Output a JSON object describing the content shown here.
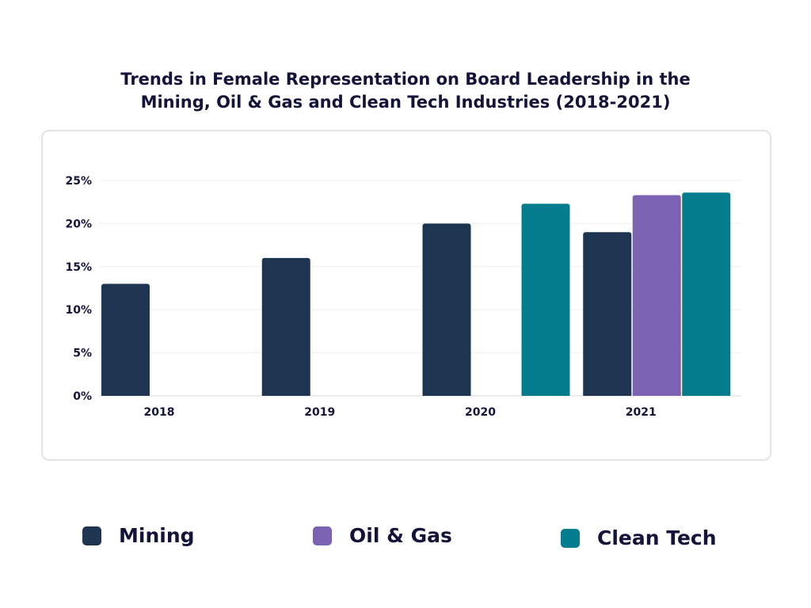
{
  "title_line1": "Trends in Female Representation on Board Leadership in the",
  "title_line2": "Mining, Oil & Gas and Clean Tech Industries (2018-2021)",
  "chart_data": {
    "type": "bar",
    "title": "Trends in Female Representation on Board Leadership in the Mining, Oil & Gas and Clean Tech Industries (2018-2021)",
    "categories": [
      "2018",
      "2019",
      "2020",
      "2021"
    ],
    "series": [
      {
        "name": "Mining",
        "color": "#1e3552",
        "values": [
          13,
          16,
          20,
          19
        ]
      },
      {
        "name": "Oil & Gas",
        "color": "#7b62b3",
        "values": [
          null,
          null,
          null,
          23.3
        ]
      },
      {
        "name": "Clean Tech",
        "color": "#037d8d",
        "values": [
          null,
          null,
          22.3,
          23.6
        ]
      }
    ],
    "ylim": [
      0,
      25
    ],
    "yticks": [
      "0%",
      "5%",
      "10%",
      "15%",
      "20%",
      "25%"
    ],
    "ytick_values": [
      0,
      5,
      10,
      15,
      20,
      25
    ],
    "grid": true,
    "legend_position": "bottom"
  },
  "legend": [
    {
      "label": "Mining",
      "color": "#1e3552"
    },
    {
      "label": "Oil & Gas",
      "color": "#7b62b3"
    },
    {
      "label": "Clean Tech",
      "color": "#037d8d"
    }
  ]
}
